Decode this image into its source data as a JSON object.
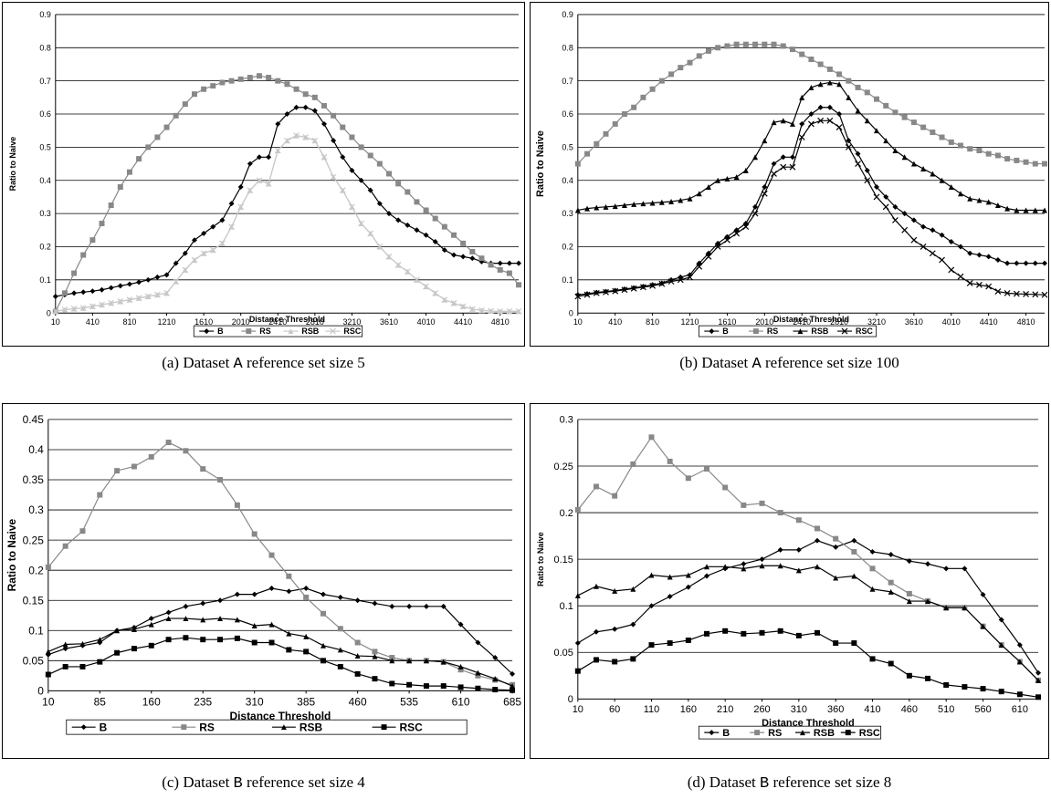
{
  "chart_data": [
    {
      "type": "line",
      "caption_prefix": "(a) Dataset ",
      "caption_dataset": "A",
      "caption_suffix": " reference set size 5",
      "xlabel": "Distance Threshold",
      "ylabel": "Ratio to Naive",
      "ylim": [
        0,
        0.9
      ],
      "yticks": [
        "0",
        "0.1",
        "0.2",
        "0.3",
        "0.4",
        "0.5",
        "0.6",
        "0.7",
        "0.8",
        "0.9"
      ],
      "xticks": [
        "10",
        "410",
        "810",
        "1210",
        "1610",
        "2010",
        "2410",
        "2810",
        "3210",
        "3610",
        "4010",
        "4410",
        "4810"
      ],
      "x": [
        10,
        110,
        210,
        310,
        410,
        510,
        610,
        710,
        810,
        910,
        1010,
        1110,
        1210,
        1310,
        1410,
        1510,
        1610,
        1710,
        1810,
        1910,
        2010,
        2110,
        2210,
        2310,
        2410,
        2510,
        2610,
        2710,
        2810,
        2910,
        3010,
        3110,
        3210,
        3310,
        3410,
        3510,
        3610,
        3710,
        3810,
        3910,
        4010,
        4110,
        4210,
        4310,
        4410,
        4510,
        4610,
        4710,
        4810,
        4910,
        5010
      ],
      "grid": true,
      "legend": "bottom",
      "series": [
        {
          "name": "B",
          "marker": "diamond",
          "color": "#000000",
          "values": [
            0.05,
            0.055,
            0.06,
            0.063,
            0.066,
            0.07,
            0.076,
            0.082,
            0.087,
            0.093,
            0.1,
            0.108,
            0.115,
            0.15,
            0.18,
            0.22,
            0.24,
            0.26,
            0.28,
            0.33,
            0.38,
            0.45,
            0.47,
            0.47,
            0.57,
            0.6,
            0.62,
            0.62,
            0.61,
            0.57,
            0.52,
            0.47,
            0.43,
            0.4,
            0.37,
            0.33,
            0.3,
            0.28,
            0.265,
            0.25,
            0.235,
            0.215,
            0.19,
            0.175,
            0.17,
            0.165,
            0.155,
            0.15,
            0.15,
            0.15,
            0.15
          ]
        },
        {
          "name": "RS",
          "marker": "square",
          "color": "#888888",
          "values": [
            0.005,
            0.06,
            0.12,
            0.175,
            0.22,
            0.27,
            0.325,
            0.38,
            0.425,
            0.465,
            0.5,
            0.53,
            0.56,
            0.595,
            0.63,
            0.66,
            0.675,
            0.685,
            0.695,
            0.7,
            0.705,
            0.71,
            0.715,
            0.71,
            0.7,
            0.69,
            0.675,
            0.66,
            0.65,
            0.625,
            0.595,
            0.56,
            0.53,
            0.5,
            0.475,
            0.45,
            0.42,
            0.39,
            0.365,
            0.335,
            0.31,
            0.285,
            0.26,
            0.235,
            0.21,
            0.185,
            0.165,
            0.145,
            0.13,
            0.12,
            0.085
          ]
        },
        {
          "name": "RSB",
          "marker": "triangle",
          "color": "#c8c8c8",
          "values": [
            0.005,
            0.01,
            0.013,
            0.015,
            0.02,
            0.025,
            0.03,
            0.035,
            0.04,
            0.045,
            0.05,
            0.055,
            0.06,
            0.095,
            0.13,
            0.16,
            0.18,
            0.19,
            0.21,
            0.26,
            0.32,
            0.37,
            0.4,
            0.39,
            0.49,
            0.52,
            0.535,
            0.53,
            0.52,
            0.47,
            0.41,
            0.37,
            0.32,
            0.27,
            0.24,
            0.2,
            0.17,
            0.145,
            0.125,
            0.1,
            0.08,
            0.06,
            0.04,
            0.03,
            0.02,
            0.012,
            0.008,
            0.006,
            0.005,
            0.005,
            0.005
          ]
        },
        {
          "name": "RSC",
          "marker": "x",
          "color": "#c8c8c8",
          "values": [
            0.005,
            0.01,
            0.013,
            0.015,
            0.02,
            0.025,
            0.03,
            0.035,
            0.04,
            0.045,
            0.05,
            0.055,
            0.06,
            0.095,
            0.13,
            0.16,
            0.18,
            0.19,
            0.21,
            0.26,
            0.32,
            0.37,
            0.4,
            0.39,
            0.49,
            0.52,
            0.535,
            0.53,
            0.52,
            0.47,
            0.41,
            0.37,
            0.32,
            0.27,
            0.24,
            0.2,
            0.17,
            0.145,
            0.125,
            0.1,
            0.08,
            0.06,
            0.04,
            0.03,
            0.02,
            0.012,
            0.008,
            0.006,
            0.005,
            0.005,
            0.005
          ]
        }
      ]
    },
    {
      "type": "line",
      "caption_prefix": "(b) Dataset ",
      "caption_dataset": "A",
      "caption_suffix": " reference set size 100",
      "xlabel": "Distance Threshold",
      "ylabel": "Ratio to Naive",
      "ylim": [
        0,
        0.9
      ],
      "yticks": [
        "0",
        "0.1",
        "0.2",
        "0.3",
        "0.4",
        "0.5",
        "0.6",
        "0.7",
        "0.8",
        "0.9"
      ],
      "xticks": [
        "10",
        "410",
        "810",
        "1210",
        "1610",
        "2010",
        "2410",
        "2810",
        "3210",
        "3610",
        "4010",
        "4410",
        "4810"
      ],
      "x": [
        10,
        110,
        210,
        310,
        410,
        510,
        610,
        710,
        810,
        910,
        1010,
        1110,
        1210,
        1310,
        1410,
        1510,
        1610,
        1710,
        1810,
        1910,
        2010,
        2110,
        2210,
        2310,
        2410,
        2510,
        2610,
        2710,
        2810,
        2910,
        3010,
        3110,
        3210,
        3310,
        3410,
        3510,
        3610,
        3710,
        3810,
        3910,
        4010,
        4110,
        4210,
        4310,
        4410,
        4510,
        4610,
        4710,
        4810,
        4910,
        5010
      ],
      "grid": true,
      "legend": "bottom",
      "series": [
        {
          "name": "B",
          "marker": "diamond",
          "color": "#000000",
          "values": [
            0.055,
            0.058,
            0.062,
            0.065,
            0.068,
            0.072,
            0.076,
            0.08,
            0.085,
            0.09,
            0.1,
            0.108,
            0.115,
            0.15,
            0.18,
            0.21,
            0.23,
            0.25,
            0.27,
            0.32,
            0.38,
            0.45,
            0.47,
            0.47,
            0.57,
            0.6,
            0.62,
            0.62,
            0.6,
            0.52,
            0.48,
            0.43,
            0.38,
            0.35,
            0.32,
            0.3,
            0.28,
            0.26,
            0.25,
            0.235,
            0.215,
            0.2,
            0.18,
            0.175,
            0.17,
            0.16,
            0.15,
            0.15,
            0.15,
            0.15,
            0.15
          ]
        },
        {
          "name": "RS",
          "marker": "square",
          "color": "#888888",
          "values": [
            0.45,
            0.48,
            0.51,
            0.54,
            0.57,
            0.6,
            0.62,
            0.65,
            0.675,
            0.7,
            0.72,
            0.74,
            0.755,
            0.775,
            0.79,
            0.8,
            0.805,
            0.81,
            0.81,
            0.81,
            0.81,
            0.81,
            0.805,
            0.795,
            0.78,
            0.765,
            0.75,
            0.735,
            0.72,
            0.7,
            0.68,
            0.665,
            0.645,
            0.625,
            0.605,
            0.59,
            0.575,
            0.56,
            0.545,
            0.53,
            0.515,
            0.505,
            0.495,
            0.49,
            0.48,
            0.475,
            0.465,
            0.46,
            0.455,
            0.45,
            0.45
          ]
        },
        {
          "name": "RSB",
          "marker": "triangle",
          "color": "#000000",
          "values": [
            0.31,
            0.315,
            0.318,
            0.32,
            0.322,
            0.325,
            0.328,
            0.33,
            0.332,
            0.334,
            0.336,
            0.34,
            0.345,
            0.36,
            0.38,
            0.4,
            0.405,
            0.41,
            0.43,
            0.47,
            0.52,
            0.575,
            0.58,
            0.57,
            0.65,
            0.68,
            0.69,
            0.695,
            0.69,
            0.65,
            0.61,
            0.58,
            0.55,
            0.52,
            0.49,
            0.47,
            0.45,
            0.435,
            0.42,
            0.4,
            0.38,
            0.36,
            0.345,
            0.34,
            0.335,
            0.325,
            0.315,
            0.31,
            0.31,
            0.31,
            0.31
          ]
        },
        {
          "name": "RSC",
          "marker": "x",
          "color": "#000000",
          "values": [
            0.05,
            0.055,
            0.06,
            0.063,
            0.066,
            0.07,
            0.074,
            0.078,
            0.082,
            0.088,
            0.095,
            0.1,
            0.108,
            0.14,
            0.17,
            0.2,
            0.22,
            0.24,
            0.26,
            0.3,
            0.36,
            0.42,
            0.44,
            0.44,
            0.53,
            0.57,
            0.58,
            0.58,
            0.56,
            0.5,
            0.45,
            0.4,
            0.35,
            0.32,
            0.28,
            0.25,
            0.22,
            0.2,
            0.18,
            0.16,
            0.13,
            0.11,
            0.09,
            0.085,
            0.08,
            0.065,
            0.06,
            0.058,
            0.057,
            0.056,
            0.055
          ]
        }
      ]
    },
    {
      "type": "line",
      "caption_prefix": "(c) Dataset ",
      "caption_dataset": "B",
      "caption_suffix": " reference set size 4",
      "xlabel": "Distance Threshold",
      "ylabel": "Ratio to Naive",
      "ylim": [
        0,
        0.45
      ],
      "yticks": [
        "0",
        "0.05",
        "0.1",
        "0.15",
        "0.2",
        "0.25",
        "0.3",
        "0.35",
        "0.4",
        "0.45"
      ],
      "xticks": [
        "10",
        "85",
        "160",
        "235",
        "310",
        "385",
        "460",
        "535",
        "610",
        "685"
      ],
      "x": [
        10,
        35,
        60,
        85,
        110,
        135,
        160,
        185,
        210,
        235,
        260,
        285,
        310,
        335,
        360,
        385,
        410,
        435,
        460,
        485,
        510,
        535,
        560,
        585,
        610,
        635,
        660,
        685
      ],
      "grid": true,
      "legend": "bottom",
      "series": [
        {
          "name": "B",
          "marker": "diamond",
          "color": "#000000",
          "values": [
            0.06,
            0.07,
            0.075,
            0.08,
            0.1,
            0.105,
            0.12,
            0.13,
            0.14,
            0.145,
            0.15,
            0.16,
            0.16,
            0.17,
            0.165,
            0.17,
            0.16,
            0.155,
            0.15,
            0.145,
            0.14,
            0.14,
            0.14,
            0.14,
            0.11,
            0.08,
            0.055,
            0.028
          ]
        },
        {
          "name": "RS",
          "marker": "square",
          "color": "#888888",
          "values": [
            0.205,
            0.24,
            0.265,
            0.325,
            0.365,
            0.372,
            0.388,
            0.412,
            0.398,
            0.368,
            0.35,
            0.308,
            0.26,
            0.225,
            0.19,
            0.155,
            0.128,
            0.103,
            0.08,
            0.065,
            0.055,
            0.05,
            0.05,
            0.048,
            0.035,
            0.025,
            0.018,
            0.01
          ]
        },
        {
          "name": "RSB",
          "marker": "triangle",
          "color": "#000000",
          "values": [
            0.065,
            0.077,
            0.078,
            0.085,
            0.1,
            0.102,
            0.11,
            0.12,
            0.12,
            0.118,
            0.12,
            0.118,
            0.108,
            0.11,
            0.095,
            0.09,
            0.075,
            0.068,
            0.058,
            0.057,
            0.05,
            0.05,
            0.05,
            0.048,
            0.04,
            0.03,
            0.02,
            0.008
          ]
        },
        {
          "name": "RSC",
          "marker": "square",
          "color": "#000000",
          "values": [
            0.027,
            0.04,
            0.04,
            0.048,
            0.063,
            0.07,
            0.075,
            0.085,
            0.088,
            0.085,
            0.085,
            0.087,
            0.08,
            0.08,
            0.068,
            0.065,
            0.05,
            0.04,
            0.028,
            0.02,
            0.012,
            0.01,
            0.008,
            0.008,
            0.006,
            0.004,
            0.002,
            0.001
          ]
        }
      ]
    },
    {
      "type": "line",
      "caption_prefix": "(d) Dataset ",
      "caption_dataset": "B",
      "caption_suffix": " reference set size 8",
      "xlabel": "Distance Threshold",
      "ylabel": "Ratio to Naive",
      "ylim": [
        0,
        0.3
      ],
      "yticks": [
        "0",
        "0.05",
        "0.1",
        "0.15",
        "0.2",
        "0.25",
        "0.3"
      ],
      "xticks": [
        "10",
        "60",
        "110",
        "160",
        "210",
        "260",
        "310",
        "360",
        "410",
        "460",
        "510",
        "560",
        "610"
      ],
      "x": [
        10,
        35,
        60,
        85,
        110,
        135,
        160,
        185,
        210,
        235,
        260,
        285,
        310,
        335,
        360,
        385,
        410,
        435,
        460,
        485,
        510,
        535,
        560,
        585,
        610,
        635
      ],
      "grid": true,
      "legend": "bottom",
      "series": [
        {
          "name": "B",
          "marker": "diamond",
          "color": "#000000",
          "values": [
            0.06,
            0.072,
            0.075,
            0.08,
            0.1,
            0.11,
            0.12,
            0.132,
            0.14,
            0.145,
            0.15,
            0.16,
            0.16,
            0.17,
            0.163,
            0.17,
            0.158,
            0.155,
            0.148,
            0.145,
            0.14,
            0.14,
            0.112,
            0.085,
            0.058,
            0.028
          ]
        },
        {
          "name": "RS",
          "marker": "square",
          "color": "#888888",
          "values": [
            0.203,
            0.228,
            0.218,
            0.252,
            0.281,
            0.255,
            0.237,
            0.247,
            0.227,
            0.208,
            0.21,
            0.2,
            0.192,
            0.183,
            0.172,
            0.158,
            0.14,
            0.125,
            0.113,
            0.105,
            0.098,
            0.098,
            0.078,
            0.058,
            0.04,
            0.02
          ]
        },
        {
          "name": "RSB",
          "marker": "triangle",
          "color": "#000000",
          "values": [
            0.111,
            0.121,
            0.116,
            0.118,
            0.133,
            0.131,
            0.133,
            0.142,
            0.142,
            0.14,
            0.143,
            0.143,
            0.138,
            0.142,
            0.13,
            0.132,
            0.118,
            0.115,
            0.105,
            0.105,
            0.098,
            0.098,
            0.078,
            0.058,
            0.04,
            0.02
          ]
        },
        {
          "name": "RSC",
          "marker": "square",
          "color": "#000000",
          "values": [
            0.03,
            0.042,
            0.04,
            0.043,
            0.058,
            0.06,
            0.063,
            0.07,
            0.073,
            0.07,
            0.071,
            0.073,
            0.068,
            0.071,
            0.06,
            0.06,
            0.043,
            0.038,
            0.025,
            0.022,
            0.015,
            0.013,
            0.011,
            0.008,
            0.005,
            0.002
          ]
        }
      ]
    }
  ]
}
